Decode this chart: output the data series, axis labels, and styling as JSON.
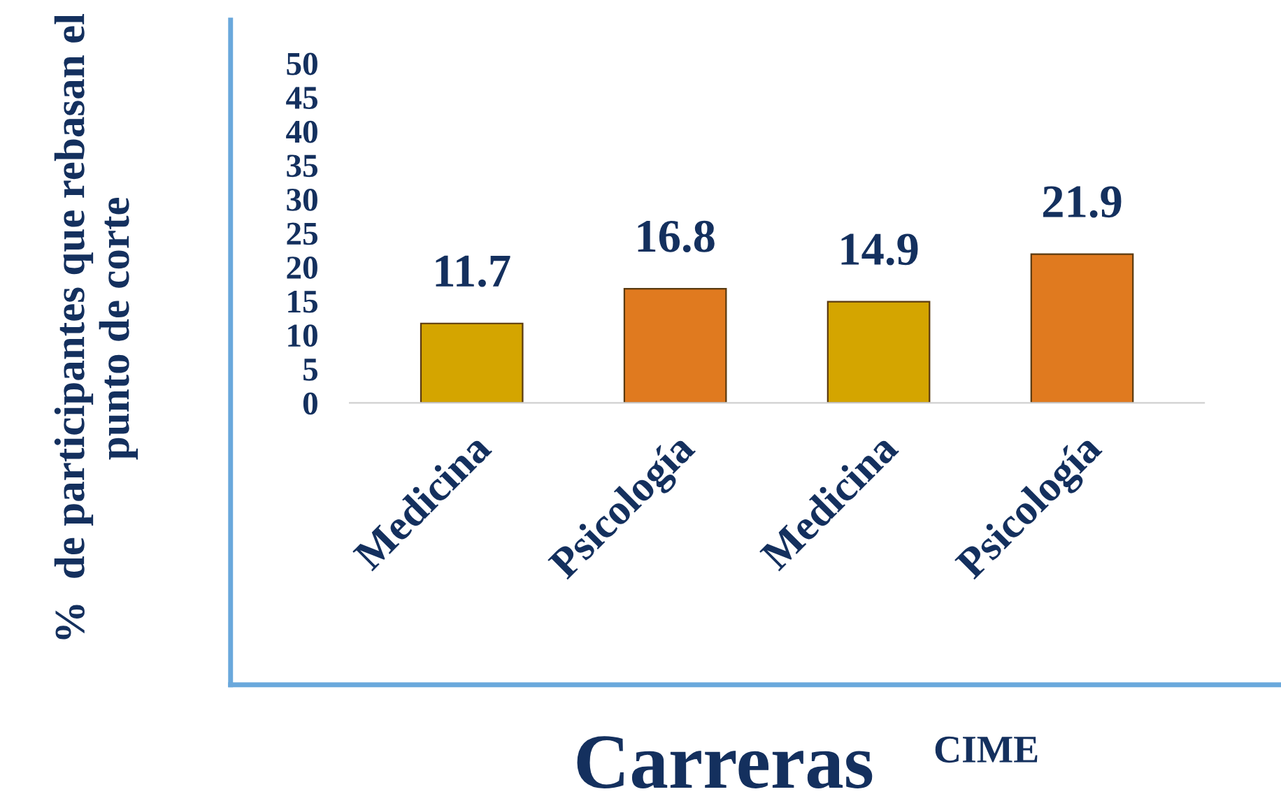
{
  "chart_data": {
    "type": "bar",
    "categories": [
      "Medicina",
      "Psicología",
      "Medicina",
      "Psicología"
    ],
    "values": [
      11.7,
      16.8,
      14.9,
      21.9
    ],
    "colors": [
      "#d4a500",
      "#e07a1f",
      "#d4a500",
      "#e07a1f"
    ],
    "ylabel": "%  de participantes que rebasan el punto de corte",
    "xlabel": "Carreras",
    "annotations": [
      "CIME"
    ],
    "ylim": [
      0,
      50
    ],
    "yticks": [
      0,
      5,
      10,
      15,
      20,
      25,
      30,
      35,
      40,
      45,
      50
    ],
    "data_labels": true,
    "grid": false
  }
}
